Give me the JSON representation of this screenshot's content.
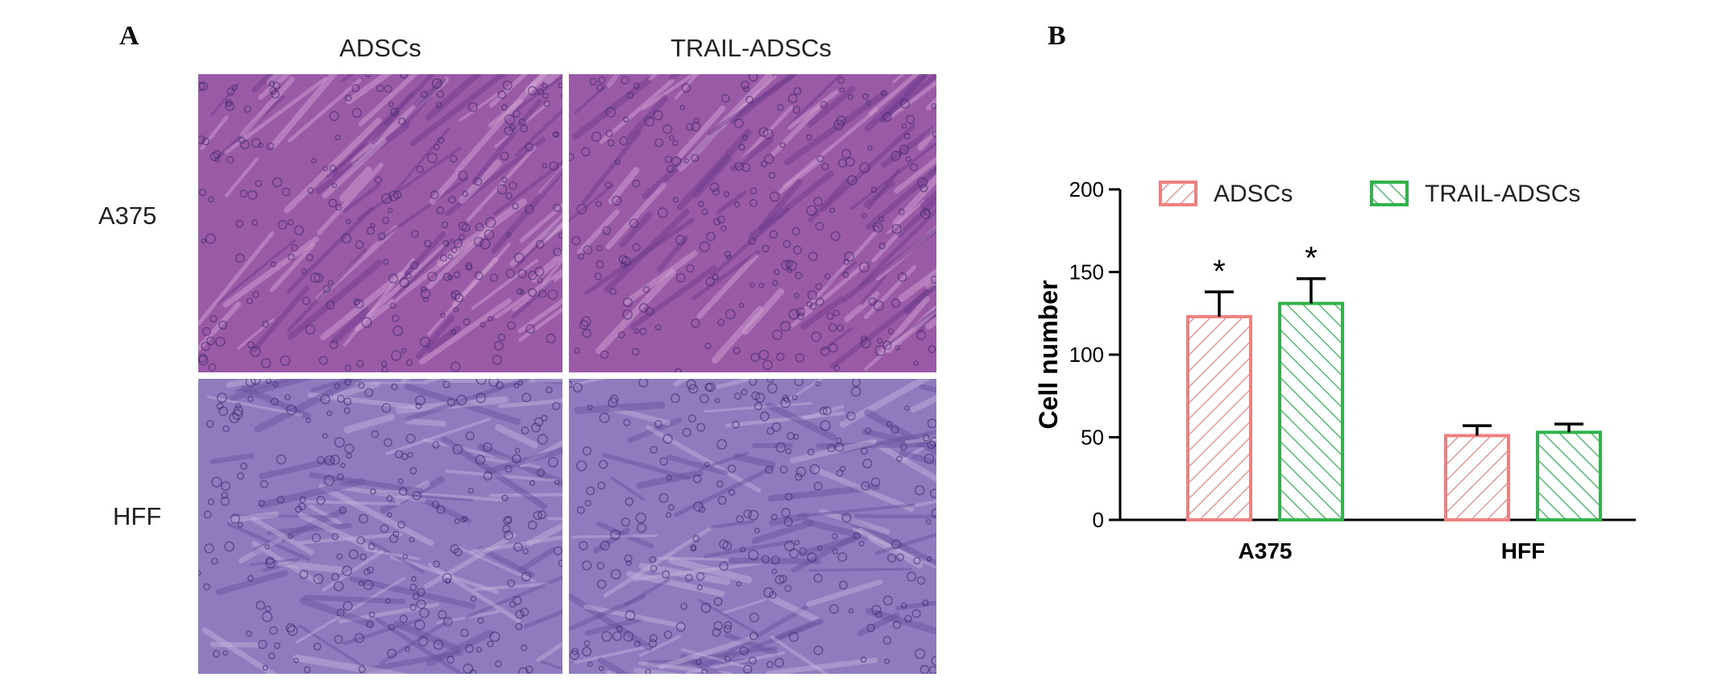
{
  "panel_a": {
    "letter": "A",
    "columns": [
      "ADSCs",
      "TRAIL-ADSCs"
    ],
    "rows": [
      "A375",
      "HFF"
    ]
  },
  "panel_b": {
    "letter": "B"
  },
  "chart_data": {
    "type": "bar",
    "categories": [
      "A375",
      "HFF"
    ],
    "series": [
      {
        "name": "ADSCs",
        "values": [
          123,
          51
        ],
        "errors": [
          15,
          6
        ],
        "color": "#f08080",
        "hatch": "forward"
      },
      {
        "name": "TRAIL-ADSCs",
        "values": [
          131,
          53
        ],
        "errors": [
          15,
          5
        ],
        "color": "#2fb34a",
        "hatch": "backward"
      }
    ],
    "significance": [
      [
        "*",
        "*"
      ],
      [
        "",
        ""
      ]
    ],
    "xlabel": "",
    "ylabel": "Cell number",
    "ylim": [
      0,
      200
    ],
    "yticks": [
      0,
      50,
      100,
      150,
      200
    ],
    "legend": "top"
  }
}
